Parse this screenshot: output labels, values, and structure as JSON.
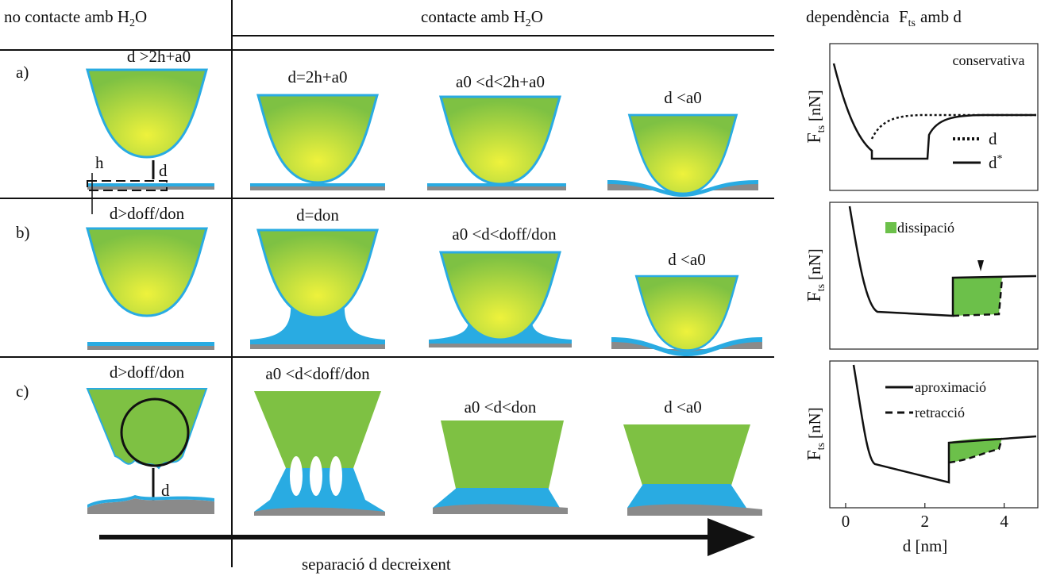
{
  "header": {
    "left": {
      "text": "no contacte amb H",
      "sub": "2",
      "tail": "O"
    },
    "middle": {
      "text": "contacte amb H",
      "sub": "2",
      "tail": "O"
    },
    "right": {
      "text": "dependència",
      "symbol": "F",
      "sub": "ts",
      "tail": "amb d"
    }
  },
  "rows": [
    {
      "label": "a)",
      "cells": [
        "d >2h+a0",
        "d=2h+a0",
        "a0 <d<2h+a0",
        "d <a0"
      ]
    },
    {
      "label": "b)",
      "cells": [
        "d>doff/don",
        "d=don",
        "a0 <d<doff/don",
        "d <a0"
      ]
    },
    {
      "label": "c)",
      "cells": [
        "d>doff/don",
        "a0 <d<doff/don",
        "a0 <d<don",
        "d <a0"
      ]
    }
  ],
  "annotations": {
    "h": "h",
    "d_a": "d",
    "d_c": "d"
  },
  "plots": [
    {
      "ylabel": {
        "symbol": "F",
        "sub": "ts",
        "unit": "[nN]"
      },
      "title": "conservativa",
      "legend": [
        {
          "text": "d"
        },
        {
          "text": "d",
          "sup": "*"
        }
      ]
    },
    {
      "ylabel": {
        "symbol": "F",
        "sub": "ts",
        "unit": "[nN]"
      },
      "legend": [
        {
          "text": "dissipació"
        }
      ]
    },
    {
      "ylabel": {
        "symbol": "F",
        "sub": "ts",
        "unit": "[nN]"
      },
      "legend": [
        {
          "text": "aproximació"
        },
        {
          "text": "retracció"
        }
      ]
    }
  ],
  "xaxis": {
    "label": "d [nm]",
    "xlim": [
      -0.4,
      4.85
    ],
    "xticks": [
      0,
      2,
      4
    ]
  },
  "footer": "separació d decreixent"
}
